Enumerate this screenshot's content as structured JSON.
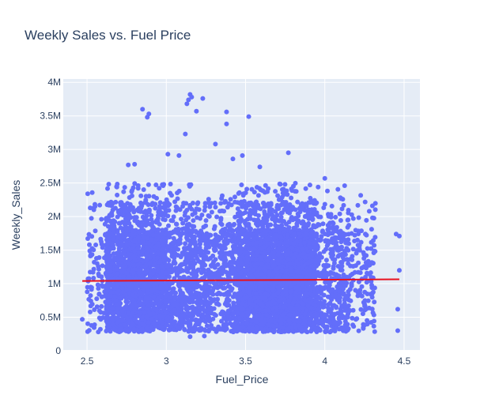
{
  "chart_data": {
    "type": "scatter",
    "title": "Weekly Sales vs. Fuel Price",
    "xlabel": "Fuel_Price",
    "ylabel": "Weekly_Sales",
    "xlim": [
      2.35,
      4.6
    ],
    "ylim": [
      0,
      4050000
    ],
    "x_ticks": [
      2.5,
      3,
      3.5,
      4,
      4.5
    ],
    "x_tick_labels": [
      "2.5",
      "3",
      "3.5",
      "4",
      "4.5"
    ],
    "y_ticks": [
      0,
      500000,
      1000000,
      1500000,
      2000000,
      2500000,
      3000000,
      3500000,
      4000000
    ],
    "y_tick_labels": [
      "0",
      "0.5M",
      "1M",
      "1.5M",
      "2M",
      "2.5M",
      "3M",
      "3.5M",
      "4M"
    ],
    "grid": true,
    "colors": {
      "points": "#636efa",
      "trendline": "#e8111e",
      "plot_bg": "#e5ecf6",
      "grid": "#ffffff",
      "text": "#2a3f5f"
    },
    "scatter_summary": {
      "x_range": [
        2.47,
        4.47
      ],
      "y_range": [
        210000,
        3820000
      ],
      "dense_band": [
        280000,
        2200000
      ],
      "point_count_estimate": 6400
    },
    "series": [
      {
        "type": "scatter",
        "points": [
          [
            2.47,
            470000
          ],
          [
            2.52,
            2130000
          ],
          [
            2.55,
            2150000
          ],
          [
            2.58,
            2170000
          ],
          [
            2.76,
            2770000
          ],
          [
            2.8,
            2780000
          ],
          [
            2.85,
            3600000
          ],
          [
            2.88,
            3480000
          ],
          [
            2.89,
            3530000
          ],
          [
            3.01,
            2930000
          ],
          [
            3.08,
            2910000
          ],
          [
            3.12,
            3230000
          ],
          [
            3.13,
            3680000
          ],
          [
            3.14,
            3740000
          ],
          [
            3.15,
            3820000
          ],
          [
            3.16,
            3780000
          ],
          [
            3.19,
            3570000
          ],
          [
            3.23,
            3760000
          ],
          [
            3.31,
            3080000
          ],
          [
            3.38,
            3560000
          ],
          [
            3.38,
            3380000
          ],
          [
            3.42,
            2860000
          ],
          [
            3.48,
            2910000
          ],
          [
            3.52,
            3490000
          ],
          [
            3.59,
            2740000
          ],
          [
            3.77,
            2950000
          ],
          [
            4.0,
            2570000
          ],
          [
            4.18,
            1970000
          ],
          [
            4.3,
            2160000
          ],
          [
            4.45,
            1740000
          ],
          [
            4.47,
            1710000
          ],
          [
            4.47,
            1200000
          ],
          [
            4.46,
            620000
          ],
          [
            4.46,
            300000
          ],
          [
            3.15,
            210000
          ],
          [
            3.24,
            220000
          ]
        ]
      },
      {
        "type": "line",
        "points": [
          [
            2.47,
            1040000
          ],
          [
            4.47,
            1065000
          ]
        ]
      }
    ]
  }
}
